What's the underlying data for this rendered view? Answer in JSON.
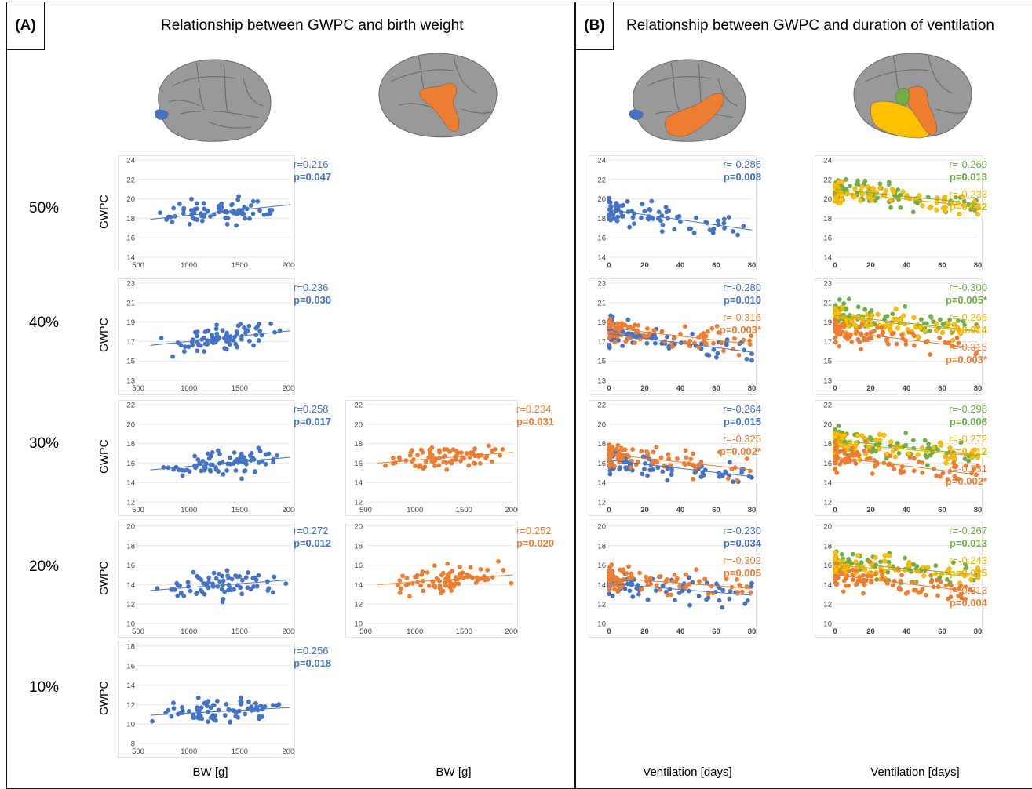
{
  "panels": {
    "a": {
      "letter": "(A)",
      "title": "Relationship between GWPC and birth weight"
    },
    "b": {
      "letter": "(B)",
      "title": "Relationship between GWPC and duration of ventilation"
    }
  },
  "row_labels": [
    "50%",
    "40%",
    "30%",
    "20%",
    "10%"
  ],
  "bottom_labels": [
    "BW [g]",
    "BW [g]",
    "Ventilation [days]",
    "Ventilation [days]"
  ],
  "colors": {
    "blue": "#4472c4",
    "orange": "#ed7d31",
    "green": "#70ad47",
    "yellow": "#ffc000",
    "brain_gray": "#999999"
  },
  "chart_data": [
    {
      "id": "a1_50",
      "type": "scatter",
      "ylabel": "GWPC",
      "xlim": [
        500,
        2000
      ],
      "ylim": [
        14,
        24
      ],
      "xticks": [
        500,
        1000,
        1500,
        2000
      ],
      "yticks": [
        14,
        16,
        18,
        20,
        22,
        24
      ],
      "series": [
        {
          "color": "blue",
          "r": "r=0.216",
          "p": "p=0.047",
          "line": [
            [
              620,
              17.9
            ],
            [
              2000,
              19.4
            ]
          ]
        }
      ]
    },
    {
      "id": "a1_40",
      "type": "scatter",
      "ylabel": "GWPC",
      "xlim": [
        500,
        2000
      ],
      "ylim": [
        13,
        23
      ],
      "xticks": [
        500,
        1000,
        1500,
        2000
      ],
      "yticks": [
        13,
        15,
        17,
        19,
        21,
        23
      ],
      "series": [
        {
          "color": "blue",
          "r": "r=0.236",
          "p": "p=0.030",
          "line": [
            [
              620,
              16.6
            ],
            [
              2000,
              18.1
            ]
          ]
        }
      ]
    },
    {
      "id": "a1_30",
      "type": "scatter",
      "ylabel": "GWPC",
      "xlim": [
        500,
        2000
      ],
      "ylim": [
        12,
        22
      ],
      "xticks": [
        500,
        1000,
        1500,
        2000
      ],
      "yticks": [
        12,
        14,
        16,
        18,
        20,
        22
      ],
      "series": [
        {
          "color": "blue",
          "r": "r=0.258",
          "p": "p=0.017",
          "line": [
            [
              620,
              15.3
            ],
            [
              2000,
              16.6
            ]
          ]
        }
      ]
    },
    {
      "id": "a1_20",
      "type": "scatter",
      "ylabel": "GWPC",
      "xlim": [
        500,
        2000
      ],
      "ylim": [
        10,
        20
      ],
      "xticks": [
        500,
        1000,
        1500,
        2000
      ],
      "yticks": [
        10,
        12,
        14,
        16,
        18,
        20
      ],
      "series": [
        {
          "color": "blue",
          "r": "r=0.272",
          "p": "p=0.012",
          "line": [
            [
              620,
              13.4
            ],
            [
              2000,
              14.5
            ]
          ]
        }
      ]
    },
    {
      "id": "a1_10",
      "type": "scatter",
      "ylabel": "GWPC",
      "xlim": [
        500,
        2000
      ],
      "ylim": [
        8,
        18
      ],
      "xticks": [
        500,
        1000,
        1500,
        2000
      ],
      "yticks": [
        8,
        10,
        12,
        14,
        16,
        18
      ],
      "series": [
        {
          "color": "blue",
          "r": "r=0.256",
          "p": "p=0.018",
          "line": [
            [
              620,
              10.9
            ],
            [
              2000,
              11.7
            ]
          ]
        }
      ]
    },
    {
      "id": "a2_30",
      "type": "scatter",
      "xlim": [
        500,
        2000
      ],
      "ylim": [
        12,
        22
      ],
      "xticks": [
        500,
        1000,
        1500,
        2000
      ],
      "yticks": [
        12,
        14,
        16,
        18,
        20,
        22
      ],
      "series": [
        {
          "color": "orange",
          "r": "r=0.234",
          "p": "p=0.031",
          "line": [
            [
              620,
              16.0
            ],
            [
              2000,
              17.1
            ]
          ]
        }
      ]
    },
    {
      "id": "a2_20",
      "type": "scatter",
      "xlim": [
        500,
        2000
      ],
      "ylim": [
        10,
        20
      ],
      "xticks": [
        500,
        1000,
        1500,
        2000
      ],
      "yticks": [
        10,
        12,
        14,
        16,
        18,
        20
      ],
      "series": [
        {
          "color": "orange",
          "r": "r=0.252",
          "p": "p=0.020",
          "line": [
            [
              620,
              14.0
            ],
            [
              2000,
              15.0
            ]
          ]
        }
      ]
    },
    {
      "id": "b1_50",
      "type": "scatter",
      "xlim": [
        0,
        80
      ],
      "ylim": [
        14,
        24
      ],
      "xticks": [
        0,
        20,
        40,
        60,
        80
      ],
      "yticks": [
        14,
        16,
        18,
        20,
        22,
        24
      ],
      "series": [
        {
          "color": "blue",
          "r": "r=-0.286",
          "p": "p=0.008",
          "line": [
            [
              0,
              18.9
            ],
            [
              80,
              16.8
            ]
          ]
        }
      ]
    },
    {
      "id": "b1_40",
      "type": "scatter",
      "xlim": [
        0,
        80
      ],
      "ylim": [
        13,
        23
      ],
      "xticks": [
        0,
        20,
        40,
        60,
        80
      ],
      "yticks": [
        13,
        15,
        17,
        19,
        21,
        23
      ],
      "series": [
        {
          "color": "blue",
          "r": "r=-0.280",
          "p": "p=0.010",
          "line": [
            [
              0,
              17.8
            ],
            [
              80,
              15.9
            ]
          ]
        },
        {
          "color": "orange",
          "r": "r=-0.316",
          "p": "p=0.003*",
          "line": [
            [
              0,
              18.4
            ],
            [
              80,
              16.7
            ]
          ]
        }
      ]
    },
    {
      "id": "b1_30",
      "type": "scatter",
      "xlim": [
        0,
        80
      ],
      "ylim": [
        12,
        22
      ],
      "xticks": [
        0,
        20,
        40,
        60,
        80
      ],
      "yticks": [
        12,
        14,
        16,
        18,
        20,
        22
      ],
      "series": [
        {
          "color": "blue",
          "r": "r=-0.264",
          "p": "p=0.015",
          "line": [
            [
              0,
              16.3
            ],
            [
              80,
              14.6
            ]
          ]
        },
        {
          "color": "orange",
          "r": "r=-0.325",
          "p": "p=0.002*",
          "line": [
            [
              0,
              16.9
            ],
            [
              80,
              15.3
            ]
          ]
        }
      ]
    },
    {
      "id": "b1_20",
      "type": "scatter",
      "xlim": [
        0,
        80
      ],
      "ylim": [
        10,
        20
      ],
      "xticks": [
        0,
        20,
        40,
        60,
        80
      ],
      "yticks": [
        10,
        12,
        14,
        16,
        18,
        20
      ],
      "series": [
        {
          "color": "blue",
          "r": "r=-0.230",
          "p": "p=0.034",
          "line": [
            [
              0,
              14.1
            ],
            [
              80,
              12.9
            ]
          ]
        },
        {
          "color": "orange",
          "r": "r=-0.302",
          "p": "p=0.005",
          "line": [
            [
              0,
              14.7
            ],
            [
              80,
              13.6
            ]
          ]
        }
      ]
    },
    {
      "id": "b2_50",
      "type": "scatter",
      "xlim": [
        0,
        80
      ],
      "ylim": [
        14,
        24
      ],
      "xticks": [
        0,
        20,
        40,
        60,
        80
      ],
      "yticks": [
        14,
        16,
        18,
        20,
        22,
        24
      ],
      "series": [
        {
          "color": "green",
          "r": "r=-0.269",
          "p": "p=0.013",
          "line": [
            [
              0,
              21.0
            ],
            [
              80,
              19.5
            ]
          ]
        },
        {
          "color": "yellow",
          "r": "r=-0.233",
          "p": "p=0.032",
          "line": [
            [
              0,
              20.7
            ],
            [
              80,
              19.2
            ]
          ]
        }
      ]
    },
    {
      "id": "b2_40",
      "type": "scatter",
      "xlim": [
        0,
        80
      ],
      "ylim": [
        13,
        23
      ],
      "xticks": [
        0,
        20,
        40,
        60,
        80
      ],
      "yticks": [
        13,
        15,
        17,
        19,
        21,
        23
      ],
      "series": [
        {
          "color": "green",
          "r": "r=-0.300",
          "p": "p=0.005*",
          "line": [
            [
              0,
              19.7
            ],
            [
              80,
              18.1
            ]
          ]
        },
        {
          "color": "yellow",
          "r": "r=-0.266",
          "p": "p=0.014",
          "line": [
            [
              0,
              19.5
            ],
            [
              80,
              18.0
            ]
          ]
        },
        {
          "color": "orange",
          "r": "r=-0.315",
          "p": "p=0.003*",
          "line": [
            [
              0,
              18.1
            ],
            [
              80,
              16.3
            ]
          ]
        }
      ]
    },
    {
      "id": "b2_30",
      "type": "scatter",
      "xlim": [
        0,
        80
      ],
      "ylim": [
        12,
        22
      ],
      "xticks": [
        0,
        20,
        40,
        60,
        80
      ],
      "yticks": [
        12,
        14,
        16,
        18,
        20,
        22
      ],
      "series": [
        {
          "color": "green",
          "r": "r=-0.298",
          "p": "p=0.006",
          "line": [
            [
              0,
              18.4
            ],
            [
              80,
              16.8
            ]
          ]
        },
        {
          "color": "yellow",
          "r": "r=-0.272",
          "p": "p=0.012",
          "line": [
            [
              0,
              18.1
            ],
            [
              80,
              16.7
            ]
          ]
        },
        {
          "color": "orange",
          "r": "r=-0.331",
          "p": "p=0.002*",
          "line": [
            [
              0,
              16.6
            ],
            [
              80,
              14.8
            ]
          ]
        }
      ]
    },
    {
      "id": "b2_20",
      "type": "scatter",
      "xlim": [
        0,
        80
      ],
      "ylim": [
        10,
        20
      ],
      "xticks": [
        0,
        20,
        40,
        60,
        80
      ],
      "yticks": [
        10,
        12,
        14,
        16,
        18,
        20
      ],
      "series": [
        {
          "color": "green",
          "r": "r=-0.267",
          "p": "p=0.013",
          "line": [
            [
              0,
              16.3
            ],
            [
              80,
              15.0
            ]
          ]
        },
        {
          "color": "yellow",
          "r": "r=-0.243",
          "p": "p=0.025",
          "line": [
            [
              0,
              16.0
            ],
            [
              80,
              14.8
            ]
          ]
        },
        {
          "color": "orange",
          "r": "r=-0.313",
          "p": "p=0.004",
          "line": [
            [
              0,
              15.0
            ],
            [
              80,
              13.2
            ]
          ]
        }
      ]
    }
  ]
}
